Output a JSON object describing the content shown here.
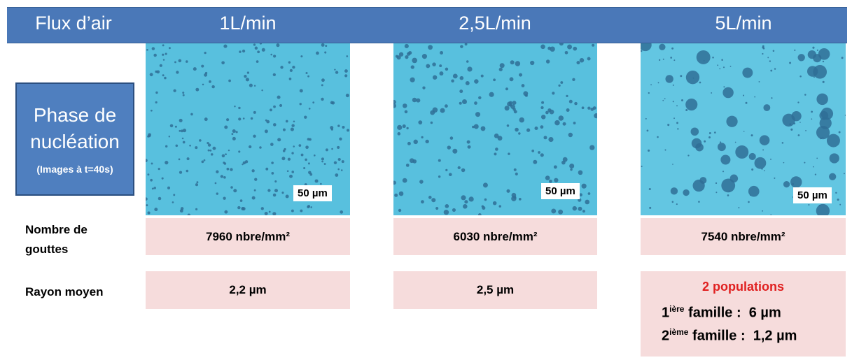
{
  "header": {
    "label": "Flux d’air",
    "columns": [
      "1L/min",
      "2,5L/min",
      "5L/min"
    ]
  },
  "phase_box": {
    "title": "Phase de nucléation",
    "note": "(Images à t=40s)"
  },
  "images": [
    {
      "scale_label": "50 µm"
    },
    {
      "scale_label": "50 µm"
    },
    {
      "scale_label": "50 µm"
    }
  ],
  "rows": {
    "count": {
      "label": "Nombre de gouttes",
      "values": [
        "7960 nbre/mm²",
        "6030 nbre/mm²",
        "7540 nbre/mm²"
      ]
    },
    "radius": {
      "label": "Rayon moyen",
      "values": [
        "2,2 µm",
        "2,5 µm"
      ],
      "populations": {
        "title": "2 populations",
        "lines": [
          {
            "num": "1",
            "sup": "ière",
            "text": "famille :  6 µm"
          },
          {
            "num": "2",
            "sup": "ième",
            "text": "famille :  1,2 µm"
          }
        ]
      }
    }
  }
}
